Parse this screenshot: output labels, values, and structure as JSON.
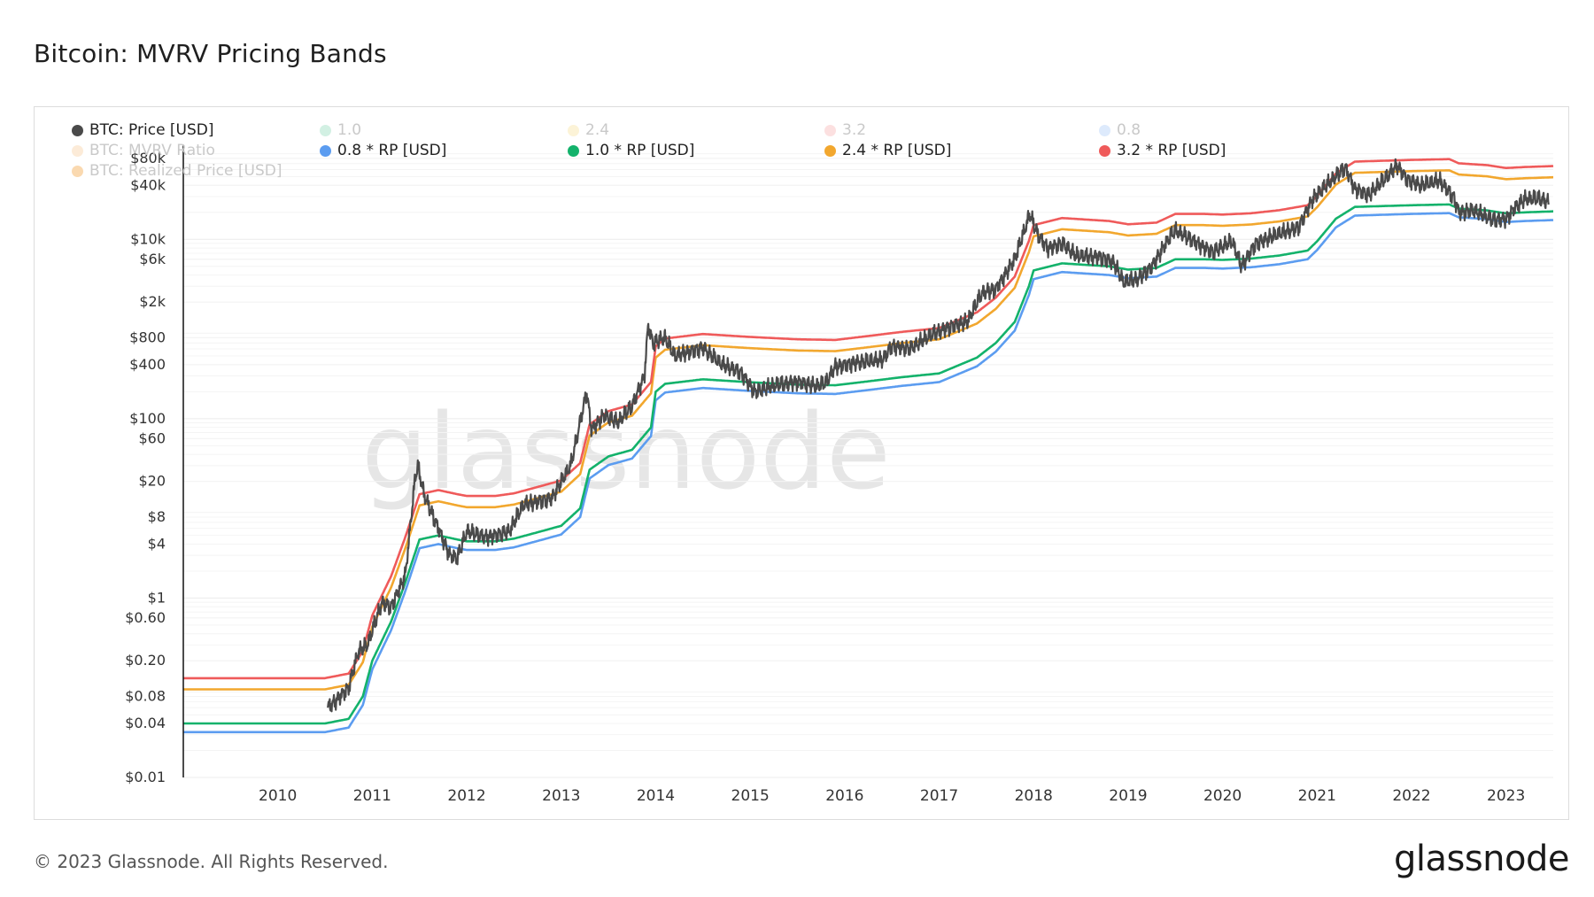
{
  "page": {
    "title": "Bitcoin: MVRV Pricing Bands",
    "copyright": "© 2023 Glassnode. All Rights Reserved.",
    "logo": "glassnode",
    "watermark": "glassnode"
  },
  "legend": [
    {
      "label": "BTC: Price [USD]",
      "color": "#4a4a4a",
      "faded": false
    },
    {
      "label": "1.0",
      "color": "#7fd3b0",
      "faded": true
    },
    {
      "label": "2.4",
      "color": "#f5dc8c",
      "faded": true
    },
    {
      "label": "3.2",
      "color": "#f6a6a6",
      "faded": true
    },
    {
      "label": "0.8",
      "color": "#9ec2f5",
      "faded": true
    },
    {
      "label": "BTC: MVRV Ratio",
      "color": "#f7c58f",
      "faded": true
    },
    {
      "label": "0.8 * RP [USD]",
      "color": "#5b9cf0",
      "faded": false
    },
    {
      "label": "1.0 * RP [USD]",
      "color": "#13b26b",
      "faded": false
    },
    {
      "label": "2.4 * RP [USD]",
      "color": "#f2a72e",
      "faded": false
    },
    {
      "label": "3.2 * RP [USD]",
      "color": "#ef5a5a",
      "faded": false
    },
    {
      "label": "BTC: Realized Price [USD]",
      "color": "#f0921e",
      "faded": true
    }
  ],
  "chart_data": {
    "type": "line",
    "y_scale": "log",
    "ylim": [
      0.01,
      100000
    ],
    "y_ticks": [
      {
        "value": 0.01,
        "label": "$0.01"
      },
      {
        "value": 0.04,
        "label": "$0.04"
      },
      {
        "value": 0.08,
        "label": "$0.08"
      },
      {
        "value": 0.2,
        "label": "$0.20"
      },
      {
        "value": 0.6,
        "label": "$0.60"
      },
      {
        "value": 1,
        "label": "$1"
      },
      {
        "value": 4,
        "label": "$4"
      },
      {
        "value": 8,
        "label": "$8"
      },
      {
        "value": 20,
        "label": "$20"
      },
      {
        "value": 60,
        "label": "$60"
      },
      {
        "value": 100,
        "label": "$100"
      },
      {
        "value": 400,
        "label": "$400"
      },
      {
        "value": 800,
        "label": "$800"
      },
      {
        "value": 2000,
        "label": "$2k"
      },
      {
        "value": 6000,
        "label": "$6k"
      },
      {
        "value": 10000,
        "label": "$10k"
      },
      {
        "value": 40000,
        "label": "$40k"
      },
      {
        "value": 80000,
        "label": "$80k"
      }
    ],
    "xlim": [
      2009.0,
      2023.5
    ],
    "x_ticks": [
      "2010",
      "2011",
      "2012",
      "2013",
      "2014",
      "2015",
      "2016",
      "2017",
      "2018",
      "2019",
      "2020",
      "2021",
      "2022",
      "2023"
    ],
    "grid": true,
    "legend_position": "top-left",
    "realized_price": [
      [
        2009.0,
        0.04
      ],
      [
        2010.5,
        0.04
      ],
      [
        2010.75,
        0.045
      ],
      [
        2010.9,
        0.08
      ],
      [
        2011.0,
        0.2
      ],
      [
        2011.2,
        0.55
      ],
      [
        2011.35,
        1.5
      ],
      [
        2011.5,
        4.5
      ],
      [
        2011.7,
        5.0
      ],
      [
        2011.9,
        4.5
      ],
      [
        2012.0,
        4.3
      ],
      [
        2012.3,
        4.3
      ],
      [
        2012.5,
        4.6
      ],
      [
        2012.8,
        5.6
      ],
      [
        2013.0,
        6.4
      ],
      [
        2013.2,
        10
      ],
      [
        2013.3,
        27
      ],
      [
        2013.5,
        38
      ],
      [
        2013.75,
        45
      ],
      [
        2013.95,
        80
      ],
      [
        2014.0,
        200
      ],
      [
        2014.1,
        245
      ],
      [
        2014.5,
        275
      ],
      [
        2015.0,
        255
      ],
      [
        2015.5,
        240
      ],
      [
        2015.9,
        236
      ],
      [
        2016.3,
        265
      ],
      [
        2016.6,
        290
      ],
      [
        2017.0,
        320
      ],
      [
        2017.4,
        480
      ],
      [
        2017.6,
        700
      ],
      [
        2017.8,
        1200
      ],
      [
        2017.95,
        3000
      ],
      [
        2018.0,
        4500
      ],
      [
        2018.3,
        5400
      ],
      [
        2018.8,
        5000
      ],
      [
        2019.0,
        4600
      ],
      [
        2019.3,
        4800
      ],
      [
        2019.5,
        6000
      ],
      [
        2019.8,
        6000
      ],
      [
        2020.0,
        5900
      ],
      [
        2020.3,
        6100
      ],
      [
        2020.6,
        6600
      ],
      [
        2020.9,
        7500
      ],
      [
        2021.0,
        9500
      ],
      [
        2021.2,
        17000
      ],
      [
        2021.4,
        23000
      ],
      [
        2021.7,
        23500
      ],
      [
        2022.0,
        24000
      ],
      [
        2022.4,
        24500
      ],
      [
        2022.5,
        22000
      ],
      [
        2022.8,
        21000
      ],
      [
        2023.0,
        19500
      ],
      [
        2023.2,
        20000
      ],
      [
        2023.5,
        20500
      ]
    ],
    "btc_price": [
      [
        2010.53,
        0.06
      ],
      [
        2010.6,
        0.07
      ],
      [
        2010.75,
        0.1
      ],
      [
        2010.85,
        0.25
      ],
      [
        2010.95,
        0.3
      ],
      [
        2011.1,
        0.9
      ],
      [
        2011.2,
        0.8
      ],
      [
        2011.35,
        1.8
      ],
      [
        2011.45,
        20
      ],
      [
        2011.48,
        30
      ],
      [
        2011.55,
        14
      ],
      [
        2011.7,
        6
      ],
      [
        2011.82,
        3.0
      ],
      [
        2011.9,
        2.8
      ],
      [
        2012.0,
        5.5
      ],
      [
        2012.2,
        4.8
      ],
      [
        2012.45,
        5.5
      ],
      [
        2012.6,
        11
      ],
      [
        2012.75,
        12
      ],
      [
        2012.9,
        13
      ],
      [
        2013.1,
        30
      ],
      [
        2013.27,
        200
      ],
      [
        2013.32,
        75
      ],
      [
        2013.45,
        110
      ],
      [
        2013.6,
        90
      ],
      [
        2013.75,
        140
      ],
      [
        2013.88,
        300
      ],
      [
        2013.92,
        1100
      ],
      [
        2013.97,
        700
      ],
      [
        2014.1,
        800
      ],
      [
        2014.2,
        500
      ],
      [
        2014.4,
        580
      ],
      [
        2014.5,
        620
      ],
      [
        2014.7,
        400
      ],
      [
        2014.9,
        330
      ],
      [
        2015.05,
        200
      ],
      [
        2015.3,
        240
      ],
      [
        2015.5,
        260
      ],
      [
        2015.7,
        230
      ],
      [
        2015.8,
        250
      ],
      [
        2015.9,
        380
      ],
      [
        2016.1,
        420
      ],
      [
        2016.4,
        450
      ],
      [
        2016.5,
        650
      ],
      [
        2016.7,
        610
      ],
      [
        2016.95,
        900
      ],
      [
        2017.15,
        1100
      ],
      [
        2017.3,
        1200
      ],
      [
        2017.45,
        2500
      ],
      [
        2017.6,
        2800
      ],
      [
        2017.8,
        6000
      ],
      [
        2017.96,
        19000
      ],
      [
        2018.05,
        11000
      ],
      [
        2018.15,
        8000
      ],
      [
        2018.3,
        9000
      ],
      [
        2018.45,
        6500
      ],
      [
        2018.7,
        6400
      ],
      [
        2018.85,
        5500
      ],
      [
        2018.95,
        3300
      ],
      [
        2019.1,
        3600
      ],
      [
        2019.25,
        5000
      ],
      [
        2019.45,
        11000
      ],
      [
        2019.5,
        12500
      ],
      [
        2019.7,
        9500
      ],
      [
        2019.9,
        7200
      ],
      [
        2020.1,
        9500
      ],
      [
        2020.2,
        5000
      ],
      [
        2020.35,
        9000
      ],
      [
        2020.6,
        11500
      ],
      [
        2020.8,
        13500
      ],
      [
        2020.95,
        28000
      ],
      [
        2021.1,
        40000
      ],
      [
        2021.3,
        63000
      ],
      [
        2021.4,
        37000
      ],
      [
        2021.55,
        31000
      ],
      [
        2021.7,
        45000
      ],
      [
        2021.85,
        67000
      ],
      [
        2021.95,
        47000
      ],
      [
        2022.1,
        40000
      ],
      [
        2022.3,
        45000
      ],
      [
        2022.45,
        29000
      ],
      [
        2022.5,
        20000
      ],
      [
        2022.65,
        21000
      ],
      [
        2022.85,
        16500
      ],
      [
        2023.0,
        17000
      ],
      [
        2023.1,
        23000
      ],
      [
        2023.2,
        28000
      ],
      [
        2023.35,
        28500
      ],
      [
        2023.45,
        26000
      ]
    ],
    "series": [
      {
        "name": "BTC: Price [USD]",
        "key": "btc_price",
        "color": "#4a4a4a"
      },
      {
        "name": "0.8 * RP [USD]",
        "multiplier": 0.8,
        "color": "#5b9cf0"
      },
      {
        "name": "1.0 * RP [USD]",
        "multiplier": 1.0,
        "color": "#13b26b"
      },
      {
        "name": "2.4 * RP [USD]",
        "multiplier": 2.4,
        "color": "#f2a72e"
      },
      {
        "name": "3.2 * RP [USD]",
        "multiplier": 3.2,
        "color": "#ef5a5a"
      }
    ]
  }
}
